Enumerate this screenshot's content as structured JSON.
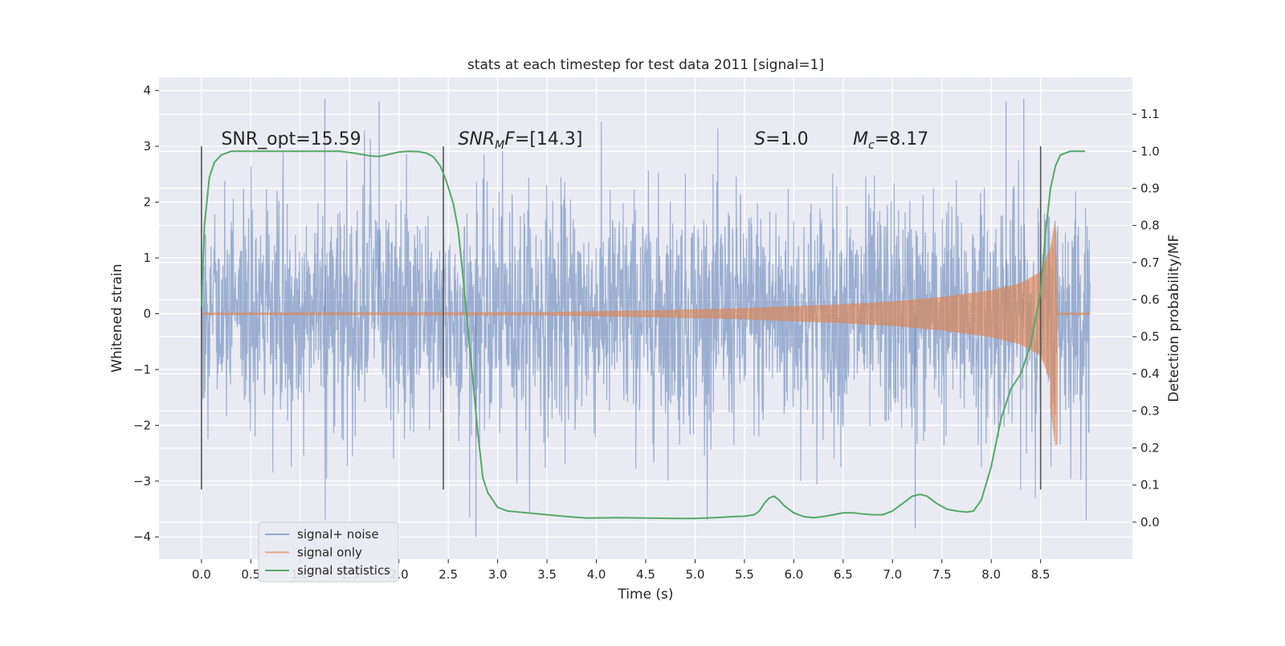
{
  "chart_data": {
    "type": "line",
    "title": "stats at each timestep for test data 2011 [signal=1]",
    "xlabel": "Time (s)",
    "ylabel": "Whitened strain",
    "y2label": "Detection probability/MF",
    "xlim": [
      -0.43,
      9.43
    ],
    "ylim": [
      -4.4,
      4.24
    ],
    "y2lim": [
      -0.1,
      1.2
    ],
    "xticks": [
      0.0,
      0.5,
      1.0,
      1.5,
      2.0,
      2.5,
      3.0,
      3.5,
      4.0,
      4.5,
      5.0,
      5.5,
      6.0,
      6.5,
      7.0,
      7.5,
      8.0,
      8.5
    ],
    "xtick_labels": [
      "0.0",
      "0.5",
      "1.0",
      "1.5",
      "2.0",
      "2.5",
      "3.0",
      "3.5",
      "4.0",
      "4.5",
      "5.0",
      "5.5",
      "6.0",
      "6.5",
      "7.0",
      "7.5",
      "8.0",
      "8.5"
    ],
    "yticks": [
      4,
      3,
      2,
      1,
      0,
      -1,
      -2,
      -3,
      -4
    ],
    "ytick_labels": [
      "4",
      "3",
      "2",
      "1",
      "0",
      "−1",
      "−2",
      "−3",
      "−4"
    ],
    "y2ticks": [
      1.1,
      1.0,
      0.9,
      0.8,
      0.7,
      0.6,
      0.5,
      0.4,
      0.3,
      0.2,
      0.1,
      0.0
    ],
    "y2tick_labels": [
      "1.1",
      "1.0",
      "0.9",
      "0.8",
      "0.7",
      "0.6",
      "0.5",
      "0.4",
      "0.3",
      "0.2",
      "0.1",
      "0.0"
    ],
    "grid": true,
    "legend_position": "lower-left",
    "annotations": {
      "snr_opt": "SNR_opt=15.59",
      "snr_mf_base": "SNR",
      "snr_mf_sub": "M",
      "snr_mf_rest": "F=[14.3]",
      "s_label": "S",
      "s_value": "=1.0",
      "mc_label": "M",
      "mc_sub": "c",
      "mc_value": "=8.17"
    },
    "vertical_markers": [
      {
        "x": 0.0,
        "y_range": [
          -3.15,
          3.0
        ]
      },
      {
        "x": 2.45,
        "y_range": [
          -3.15,
          3.0
        ]
      },
      {
        "x": 8.5,
        "y_range": [
          -3.15,
          3.0
        ]
      }
    ],
    "series": [
      {
        "name": "signal+ noise",
        "color": "#4c72b0",
        "style": "dense noise trace (whitened strain), approx. ±2 to ±3.8",
        "x_range": [
          0.0,
          9.0
        ],
        "peak_points": [
          {
            "x": 1.25,
            "y": 3.85
          },
          {
            "x": 1.8,
            "y": 3.8
          },
          {
            "x": 2.78,
            "y": -4.0
          },
          {
            "x": 7.23,
            "y": -3.85
          },
          {
            "x": 8.15,
            "y": 3.8
          },
          {
            "x": 8.33,
            "y": 3.85
          }
        ]
      },
      {
        "name": "signal only",
        "color": "#dd8452",
        "style": "chirp, amplitude grows toward merger",
        "envelope": {
          "x": [
            0.0,
            3.5,
            4.5,
            5.5,
            6.5,
            7.0,
            7.5,
            8.0,
            8.3,
            8.5,
            8.6,
            8.65,
            8.67
          ],
          "y": [
            0.02,
            0.03,
            0.06,
            0.1,
            0.17,
            0.22,
            0.3,
            0.42,
            0.55,
            0.75,
            1.2,
            1.7,
            0.1
          ]
        },
        "tail_min": -2.35
      },
      {
        "name": "signal statistics",
        "color": "#55a868",
        "axis": "right",
        "x": [
          0.0,
          0.03,
          0.08,
          0.13,
          0.2,
          0.3,
          0.5,
          0.8,
          1.0,
          1.2,
          1.4,
          1.55,
          1.7,
          1.8,
          1.9,
          2.0,
          2.1,
          2.2,
          2.28,
          2.35,
          2.42,
          2.48,
          2.55,
          2.6,
          2.65,
          2.7,
          2.75,
          2.8,
          2.85,
          2.9,
          3.0,
          3.1,
          3.3,
          3.5,
          3.7,
          3.9,
          4.2,
          4.5,
          4.8,
          5.0,
          5.2,
          5.4,
          5.5,
          5.6,
          5.65,
          5.7,
          5.75,
          5.8,
          5.85,
          5.9,
          6.0,
          6.1,
          6.2,
          6.3,
          6.4,
          6.5,
          6.6,
          6.7,
          6.8,
          6.9,
          7.0,
          7.1,
          7.2,
          7.28,
          7.35,
          7.45,
          7.55,
          7.65,
          7.75,
          7.82,
          7.9,
          8.0,
          8.1,
          8.2,
          8.3,
          8.4,
          8.5,
          8.55,
          8.6,
          8.65,
          8.7,
          8.8,
          8.9,
          8.95
        ],
        "values": [
          0.58,
          0.8,
          0.93,
          0.97,
          0.99,
          1.0,
          1.0,
          1.0,
          1.0,
          1.0,
          1.0,
          0.995,
          0.988,
          0.986,
          0.992,
          0.998,
          1.0,
          0.999,
          0.995,
          0.985,
          0.96,
          0.92,
          0.86,
          0.79,
          0.66,
          0.52,
          0.38,
          0.24,
          0.12,
          0.08,
          0.04,
          0.03,
          0.025,
          0.02,
          0.015,
          0.011,
          0.012,
          0.011,
          0.01,
          0.01,
          0.012,
          0.015,
          0.016,
          0.02,
          0.03,
          0.05,
          0.065,
          0.07,
          0.06,
          0.045,
          0.025,
          0.015,
          0.012,
          0.015,
          0.02,
          0.025,
          0.025,
          0.022,
          0.02,
          0.02,
          0.03,
          0.05,
          0.07,
          0.075,
          0.07,
          0.05,
          0.035,
          0.03,
          0.027,
          0.03,
          0.06,
          0.15,
          0.28,
          0.36,
          0.4,
          0.48,
          0.62,
          0.78,
          0.9,
          0.96,
          0.99,
          1.0,
          1.0,
          1.0
        ]
      }
    ]
  }
}
